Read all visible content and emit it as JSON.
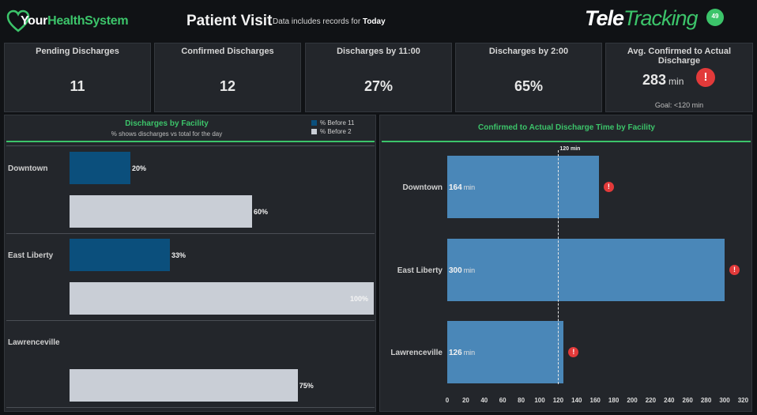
{
  "header": {
    "logo_part1": "Your",
    "logo_part2": "HealthSystem",
    "title": "Patient Visit",
    "subtitle_prefix": "Data includes records for",
    "subtitle_period": "Today",
    "brand_part1": "Tele",
    "brand_part2": "Tracking",
    "notification_count": "49"
  },
  "kpis": {
    "pending": {
      "label": "Pending Discharges",
      "value": "11"
    },
    "confirmed": {
      "label": "Confirmed Discharges",
      "value": "12"
    },
    "by11": {
      "label": "Discharges by 11:00",
      "value": "27%"
    },
    "by2": {
      "label": "Discharges by 2:00",
      "value": "65%"
    },
    "avg": {
      "label": "Avg. Confirmed to Actual Discharge",
      "value": "283",
      "unit": "min",
      "alert": "!",
      "goal": "Goal: <120 min"
    }
  },
  "colors": {
    "brand_green": "#3cc46a",
    "before11": "#0b4f7c",
    "before2": "#c9ced6",
    "minutes_bar": "#4a87b8",
    "alert_red": "#e23a3a"
  },
  "left_panel": {
    "title": "Discharges by Facility",
    "subtitle": "% shows discharges vs total for the day",
    "legend": [
      {
        "label": "% Before 11",
        "color": "#0b4f7c"
      },
      {
        "label": "% Before 2",
        "color": "#c9ced6"
      }
    ],
    "facilities": [
      {
        "name": "Downtown",
        "before11": 20,
        "before11_label": "20%",
        "before2": 60,
        "before2_label": "60%"
      },
      {
        "name": "East Liberty",
        "before11": 33,
        "before11_label": "33%",
        "before2": 100,
        "before2_label": "100%"
      },
      {
        "name": "Lawrenceville",
        "before11": null,
        "before11_label": "",
        "before2": 75,
        "before2_label": "75%"
      }
    ]
  },
  "right_panel": {
    "title": "Confirmed to Actual Discharge Time by Facility",
    "reference_label": "120 min",
    "reference_value": 120,
    "unit": "min",
    "alert": "!",
    "x_ticks": [
      "0",
      "20",
      "40",
      "60",
      "80",
      "100",
      "120",
      "140",
      "160",
      "180",
      "200",
      "220",
      "240",
      "260",
      "280",
      "300",
      "320"
    ],
    "facilities": [
      {
        "name": "Downtown",
        "minutes": 164
      },
      {
        "name": "East Liberty",
        "minutes": 300
      },
      {
        "name": "Lawrenceville",
        "minutes": 126
      }
    ]
  }
}
